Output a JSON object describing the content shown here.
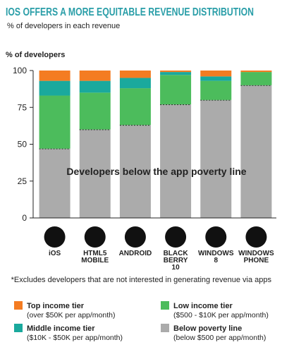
{
  "chart_data": {
    "type": "stacked-bar",
    "title": "IOS OFFERS A MORE EQUITABLE REVENUE DISTRIBUTION",
    "subtitle": "% of developers in each revenue",
    "y_label": "% of developers",
    "annotation": "Developers below the app poverty line",
    "footnote": "*Excludes developers that are not interested in generating revenue via apps",
    "categories": [
      "iOS",
      "HTML5 MOBILE",
      "ANDROID",
      "BLACK BERRY 10",
      "WINDOWS 8",
      "WINDOWS PHONE"
    ],
    "ylim": [
      0,
      100
    ],
    "yticks": [
      0,
      25,
      50,
      75,
      100
    ],
    "series": [
      {
        "name": "Below poverty line",
        "detail": "(below $500 per app/month)",
        "color": "#ababab",
        "values": [
          47,
          60,
          63,
          77,
          80,
          90
        ]
      },
      {
        "name": "Low income tier",
        "detail": "($500 - $10K per app/month)",
        "color": "#4cbc5c",
        "values": [
          36,
          25,
          25,
          20,
          13,
          9
        ]
      },
      {
        "name": "Middle income tier",
        "detail": "($10K - $50K per app/month)",
        "color": "#1aa99d",
        "values": [
          10,
          8,
          7,
          2,
          3,
          0
        ]
      },
      {
        "name": "Top income tier",
        "detail": "(over $50K per app/month)",
        "color": "#f47c22",
        "values": [
          7,
          7,
          5,
          1,
          4,
          1
        ]
      }
    ]
  }
}
